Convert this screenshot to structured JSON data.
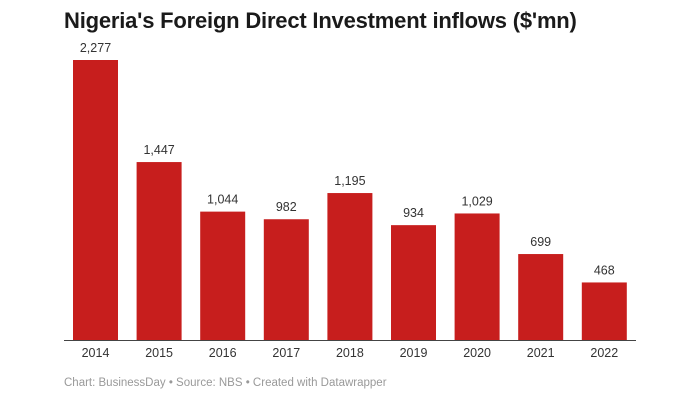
{
  "chart_data": {
    "type": "bar",
    "title": "Nigeria's Foreign Direct Investment inflows ($'mn)",
    "categories": [
      "2014",
      "2015",
      "2016",
      "2017",
      "2018",
      "2019",
      "2020",
      "2021",
      "2022"
    ],
    "values": [
      2277,
      1447,
      1044,
      982,
      1195,
      934,
      1029,
      699,
      468
    ],
    "value_labels": [
      "2,277",
      "1,447",
      "1,044",
      "982",
      "1,195",
      "934",
      "1,029",
      "699",
      "468"
    ],
    "xlabel": "",
    "ylabel": "",
    "ylim": [
      0,
      2277
    ],
    "grid": false,
    "bar_color": "#c71e1d",
    "footer": "Chart: BusinessDay • Source: NBS • Created with Datawrapper"
  }
}
